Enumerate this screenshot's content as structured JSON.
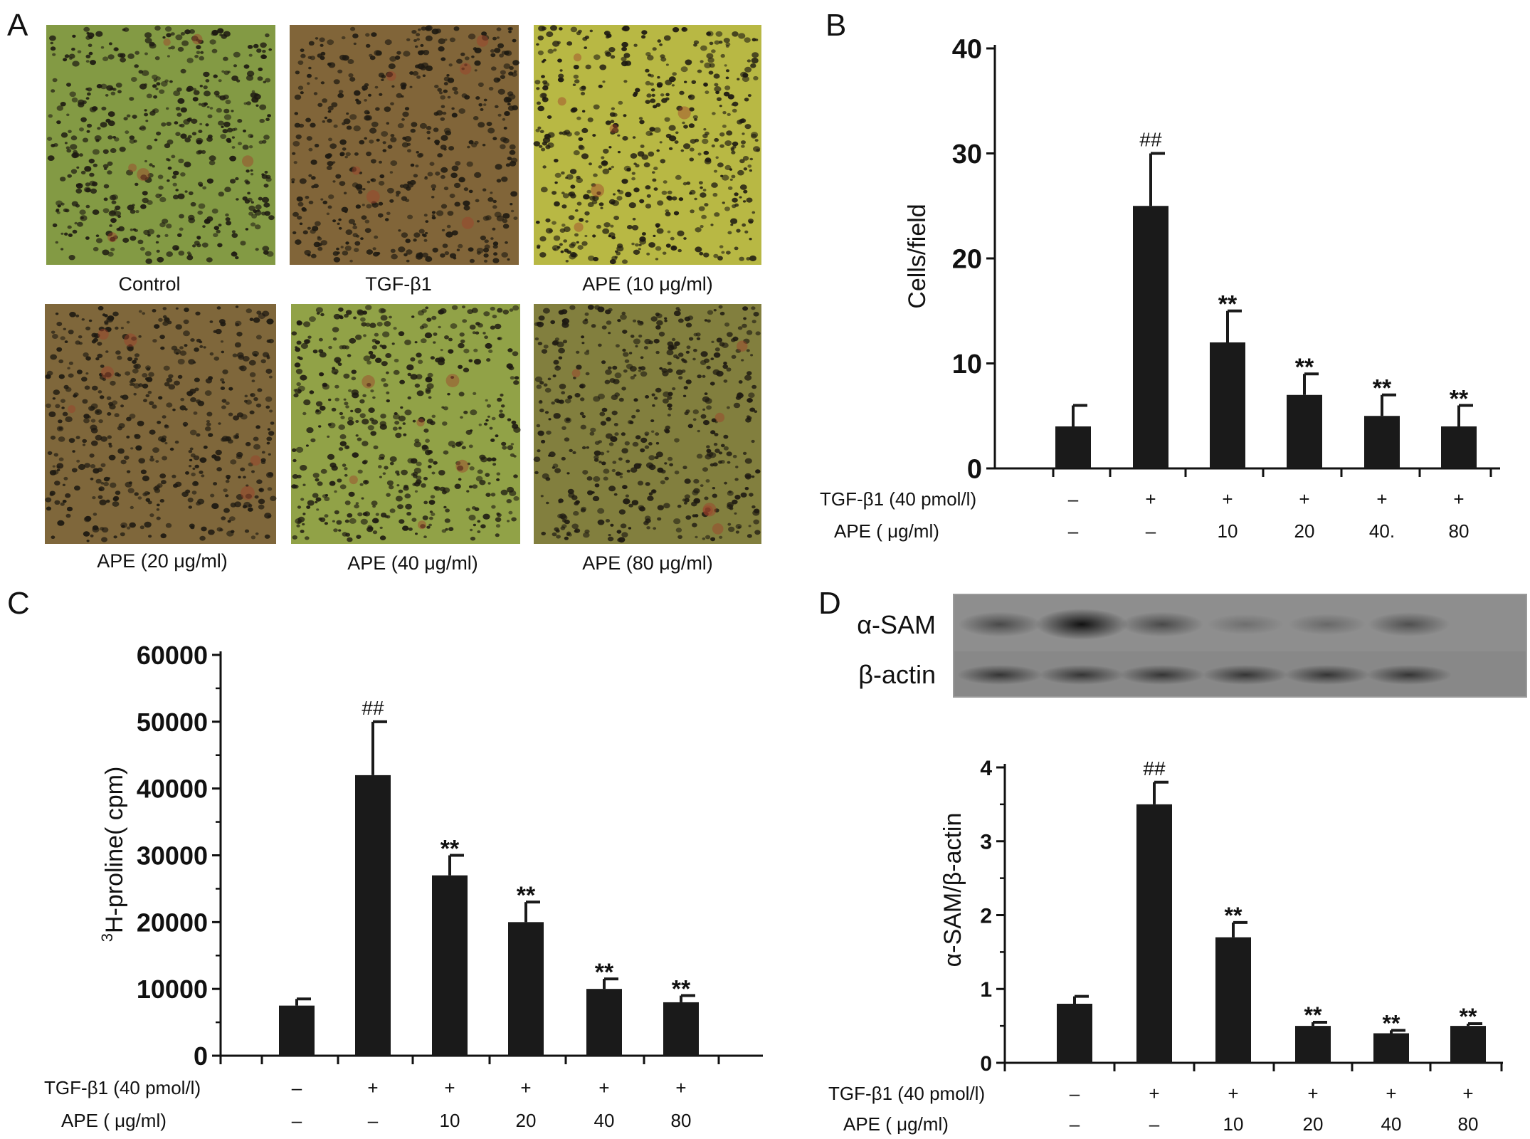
{
  "panels": {
    "A": {
      "letter": "A",
      "images": [
        {
          "caption": "Control",
          "tint": "#8fa84a"
        },
        {
          "caption": "TGF-β1",
          "tint": "#8c6e3e"
        },
        {
          "caption": "APE (10 μg/ml)",
          "tint": "#c8c84a"
        },
        {
          "caption": "APE (20 μg/ml)",
          "tint": "#8a7040"
        },
        {
          "caption": "APE (40 μg/ml)",
          "tint": "#9eb04e"
        },
        {
          "caption": "APE (80 μg/ml)",
          "tint": "#8e8a44"
        }
      ]
    },
    "B": {
      "letter": "B"
    },
    "C": {
      "letter": "C"
    },
    "D": {
      "letter": "D",
      "blot_labels": [
        "α-SAM",
        "β-actin"
      ],
      "blot_band_intensity": {
        "alpha_sam": [
          0.55,
          1.0,
          0.55,
          0.25,
          0.3,
          0.5
        ],
        "beta_actin": [
          0.7,
          0.7,
          0.7,
          0.7,
          0.7,
          0.7
        ]
      }
    }
  },
  "chart_data": [
    {
      "panel": "B",
      "type": "bar",
      "ylabel": "Cells/field",
      "ylim": [
        0,
        40
      ],
      "yticks": [
        "0",
        "10",
        "20",
        "30",
        "40"
      ],
      "values": [
        4,
        25,
        12,
        7,
        5,
        4
      ],
      "errors": [
        2,
        5,
        3,
        2,
        2,
        2
      ],
      "annotations": [
        "",
        "##",
        "**",
        "**",
        "**",
        "**"
      ],
      "conditions": {
        "row1_label": "TGF-β1 (40 pmol/l)",
        "row1": [
          "–",
          "+",
          "+",
          "+",
          "+",
          "+"
        ],
        "row2_label": "APE ( μg/ml)",
        "row2": [
          "–",
          "–",
          "10",
          "20",
          "40.",
          "80"
        ]
      }
    },
    {
      "panel": "C",
      "type": "bar",
      "ylabel_sup": "3",
      "ylabel": "H-proline( cpm)",
      "ylim": [
        0,
        60000
      ],
      "yticks": [
        "0",
        "10000",
        "20000",
        "30000",
        "40000",
        "50000",
        "60000"
      ],
      "values": [
        7500,
        42000,
        27000,
        20000,
        10000,
        8000
      ],
      "errors": [
        1000,
        8000,
        3000,
        3000,
        1500,
        1000
      ],
      "annotations": [
        "",
        "##",
        "**",
        "**",
        "**",
        "**"
      ],
      "conditions": {
        "row1_label": "TGF-β1 (40 pmol/l)",
        "row1": [
          "–",
          "+",
          "+",
          "+",
          "+",
          "+"
        ],
        "row2_label": "APE ( μg/ml)",
        "row2": [
          "–",
          "–",
          "10",
          "20",
          "40",
          "80"
        ]
      }
    },
    {
      "panel": "D",
      "type": "bar",
      "ylabel": "α-SAM/β-actin",
      "ylim": [
        0,
        4
      ],
      "yticks": [
        "0",
        "1",
        "2",
        "3",
        "4"
      ],
      "values": [
        0.8,
        3.5,
        1.7,
        0.5,
        0.4,
        0.5
      ],
      "errors": [
        0.1,
        0.3,
        0.2,
        0.05,
        0.04,
        0.03
      ],
      "annotations": [
        "",
        "##",
        "**",
        "**",
        "**",
        "**"
      ],
      "conditions": {
        "row1_label": "TGF-β1 (40 pmol/l)",
        "row1": [
          "–",
          "+",
          "+",
          "+",
          "+",
          "+"
        ],
        "row2_label": "APE ( μg/ml)",
        "row2": [
          "–",
          "–",
          "10",
          "20",
          "40",
          "80"
        ]
      }
    }
  ]
}
